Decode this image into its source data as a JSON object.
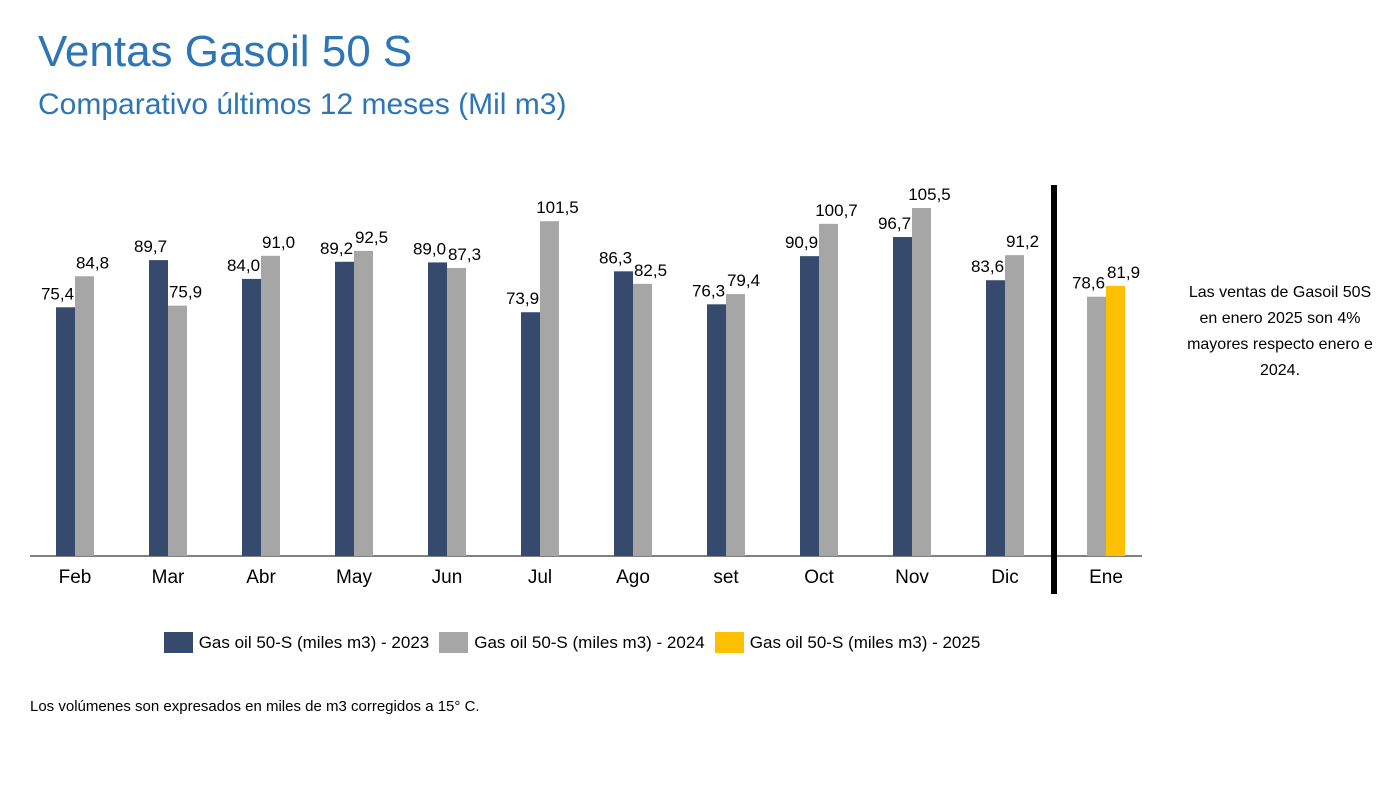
{
  "header": {
    "title": "Ventas Gasoil 50 S",
    "subtitle": "Comparativo últimos 12 meses (Mil m3)"
  },
  "note": "Las ventas de Gasoil 50S en enero 2025 son 4% mayores respecto enero e 2024.",
  "footnote": "Los volúmenes son expresados en miles de m3 corregidos a 15° C.",
  "colors": {
    "s2023": "#354a6c",
    "s2024": "#a6a6a6",
    "s2025": "#ffc000",
    "axis": "#000000"
  },
  "chart_data": {
    "type": "bar",
    "categories": [
      "Feb",
      "Mar",
      "Abr",
      "May",
      "Jun",
      "Jul",
      "Ago",
      "set",
      "Oct",
      "Nov",
      "Dic",
      "Ene"
    ],
    "series": [
      {
        "name": "Gas oil 50-S (miles m3) - 2023",
        "values": [
          75.4,
          89.7,
          84.0,
          89.2,
          89.0,
          73.9,
          86.3,
          76.3,
          90.9,
          96.7,
          83.6,
          null
        ],
        "labels": [
          "75,4",
          "89,7",
          "84,0",
          "89,2",
          "89,0",
          "73,9",
          "86,3",
          "76,3",
          "90,9",
          "96,7",
          "83,6",
          ""
        ],
        "color": "#354a6c"
      },
      {
        "name": "Gas oil 50-S (miles m3) - 2024",
        "values": [
          84.8,
          75.9,
          91.0,
          92.5,
          87.3,
          101.5,
          82.5,
          79.4,
          100.7,
          105.5,
          91.2,
          78.6
        ],
        "labels": [
          "84,8",
          "75,9",
          "91,0",
          "92,5",
          "87,3",
          "101,5",
          "82,5",
          "79,4",
          "100,7",
          "105,5",
          "91,2",
          "78,6"
        ],
        "color": "#a6a6a6"
      },
      {
        "name": "Gas oil 50-S (miles m3) - 2025",
        "values": [
          null,
          null,
          null,
          null,
          null,
          null,
          null,
          null,
          null,
          null,
          null,
          81.9
        ],
        "labels": [
          "",
          "",
          "",
          "",
          "",
          "",
          "",
          "",
          "",
          "",
          "",
          "81,9"
        ],
        "color": "#ffc000"
      }
    ],
    "ylim": [
      0,
      105.5
    ],
    "grid": false,
    "legend_position": "bottom",
    "separator_before_category": "Ene"
  }
}
